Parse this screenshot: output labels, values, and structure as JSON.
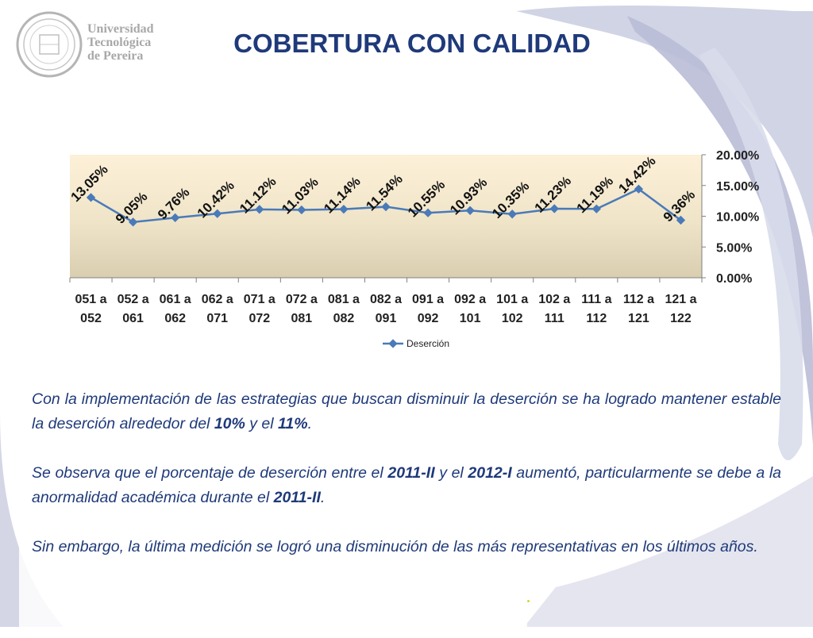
{
  "header": {
    "title": "COBERTURA CON CALIDAD",
    "logo_lines": [
      "Universidad",
      "Tecnológica",
      "de Pereira"
    ]
  },
  "colors": {
    "title": "#1f3a7a",
    "series_line": "#4a7ab8",
    "plot_top": "#fdf0d8",
    "plot_bottom": "#d9ceb0",
    "bg_arc": "#c9cce0"
  },
  "chart_data": {
    "type": "line",
    "categories": [
      [
        "051 a",
        "052"
      ],
      [
        "052 a",
        "061"
      ],
      [
        "061 a",
        "062"
      ],
      [
        "062 a",
        "071"
      ],
      [
        "071 a",
        "072"
      ],
      [
        "072 a",
        "081"
      ],
      [
        "081 a",
        "082"
      ],
      [
        "082 a",
        "091"
      ],
      [
        "091 a",
        "092"
      ],
      [
        "092 a",
        "101"
      ],
      [
        "101 a",
        "102"
      ],
      [
        "102 a",
        "111"
      ],
      [
        "111 a",
        "112"
      ],
      [
        "112 a",
        "121"
      ],
      [
        "121 a",
        "122"
      ]
    ],
    "series": [
      {
        "name": "Deserción",
        "values": [
          13.05,
          9.05,
          9.76,
          10.42,
          11.12,
          11.03,
          11.14,
          11.54,
          10.55,
          10.93,
          10.35,
          11.23,
          11.19,
          14.42,
          9.36
        ],
        "labels": [
          "13.05%",
          "9.05%",
          "9.76%",
          "10.42%",
          "11.12%",
          "11.03%",
          "11.14%",
          "11.54%",
          "10.55%",
          "10.93%",
          "10.35%",
          "11.23%",
          "11.19%",
          "14.42%",
          "9.36%"
        ]
      }
    ],
    "ylim": [
      0,
      20
    ],
    "yticks": [
      0,
      5,
      10,
      15,
      20
    ],
    "ytick_labels": [
      "0.00%",
      "5.00%",
      "10.00%",
      "15.00%",
      "20.00%"
    ],
    "y_axis_side": "right",
    "legend_position": "bottom",
    "grid": false
  },
  "paragraphs": {
    "p1": [
      {
        "t": "Con la implementación de las estrategias que buscan disminuir la deserción se ha logrado mantener estable la deserción alrededor del ",
        "b": false
      },
      {
        "t": "10%",
        "b": true
      },
      {
        "t": " y el ",
        "b": false
      },
      {
        "t": "11%",
        "b": true
      },
      {
        "t": ".",
        "b": false
      }
    ],
    "p2": [
      {
        "t": "Se observa que el porcentaje de deserción entre el ",
        "b": false
      },
      {
        "t": "2011-II",
        "b": true
      },
      {
        "t": " y el ",
        "b": false
      },
      {
        "t": "2012-I",
        "b": true
      },
      {
        "t": " aumentó, particularmente se debe a la anormalidad académica durante el ",
        "b": false
      },
      {
        "t": "2011-II",
        "b": true
      },
      {
        "t": ".",
        "b": false
      }
    ],
    "p3": [
      {
        "t": "Sin embargo, la última medición se logró una disminución de las más representativas en los últimos años.",
        "b": false
      }
    ]
  }
}
